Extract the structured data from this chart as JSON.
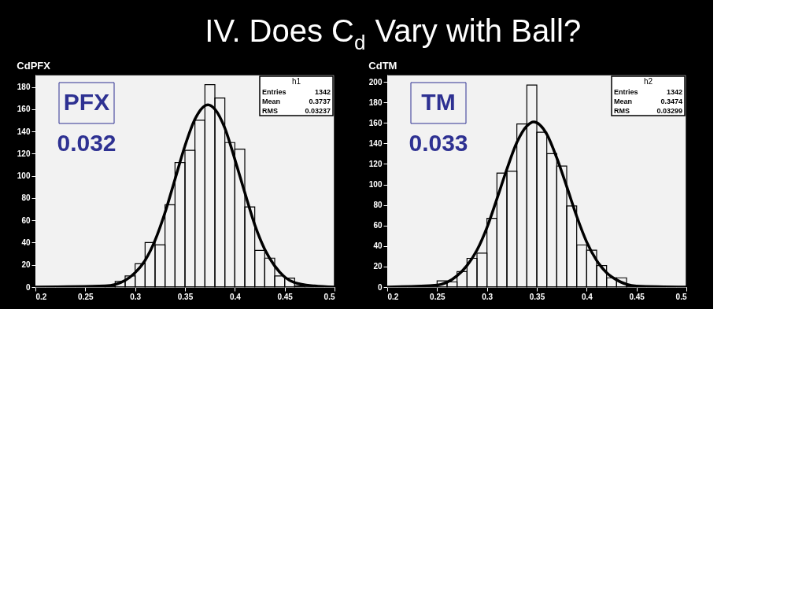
{
  "chart_data": [
    {
      "type": "histogram",
      "title": "CdPFX",
      "xlim": [
        0.2,
        0.5
      ],
      "xticks": [
        0.2,
        0.25,
        0.3,
        0.35,
        0.4,
        0.45,
        0.5
      ],
      "ylim": [
        0,
        191
      ],
      "yticks": [
        0,
        20,
        40,
        60,
        80,
        100,
        120,
        140,
        160,
        180
      ],
      "grid": false,
      "bins": [
        0.2,
        0.21,
        0.22,
        0.23,
        0.24,
        0.25,
        0.26,
        0.27,
        0.28,
        0.29,
        0.3,
        0.31,
        0.32,
        0.33,
        0.34,
        0.35,
        0.36,
        0.37,
        0.38,
        0.39,
        0.4,
        0.41,
        0.42,
        0.43,
        0.44,
        0.45,
        0.46,
        0.47,
        0.48,
        0.49,
        0.5
      ],
      "series": [
        {
          "color": "#000000",
          "values": [
            0,
            0,
            0,
            0,
            0,
            0,
            0,
            1,
            5,
            10,
            21,
            40,
            38,
            74,
            112,
            123,
            150,
            182,
            170,
            130,
            124,
            72,
            33,
            26,
            10,
            8,
            1,
            0,
            0,
            0
          ]
        },
        {
          "type": "line",
          "color": "#000000",
          "x": [
            0.2,
            0.27,
            0.29,
            0.3,
            0.31,
            0.32,
            0.33,
            0.34,
            0.35,
            0.36,
            0.373,
            0.38,
            0.39,
            0.4,
            0.41,
            0.42,
            0.43,
            0.44,
            0.45,
            0.46,
            0.48,
            0.5
          ],
          "values": [
            0,
            1,
            6,
            13,
            24,
            42,
            67,
            97,
            127,
            151,
            164,
            160,
            143,
            115,
            85,
            56,
            34,
            19,
            9,
            4,
            1,
            0
          ]
        }
      ],
      "annotations": [
        "IV.  Does C$_{d}$ Vary with Ball?",
        "h1",
        "Entries",
        "1342",
        "Mean",
        "0.3737",
        "RMS",
        "0.03237",
        "PFX",
        "0.032"
      ]
    },
    {
      "type": "histogram",
      "title": "CdTM",
      "xlim": [
        0.2,
        0.5
      ],
      "xticks": [
        0.2,
        0.25,
        0.3,
        0.35,
        0.4,
        0.45,
        0.5
      ],
      "ylim": [
        0,
        207
      ],
      "yticks": [
        0,
        20,
        40,
        60,
        80,
        100,
        120,
        140,
        160,
        180,
        200
      ],
      "grid": false,
      "bins": [
        0.2,
        0.21,
        0.22,
        0.23,
        0.24,
        0.25,
        0.26,
        0.27,
        0.28,
        0.29,
        0.3,
        0.31,
        0.32,
        0.33,
        0.34,
        0.35,
        0.36,
        0.37,
        0.38,
        0.39,
        0.4,
        0.41,
        0.42,
        0.43,
        0.44,
        0.45,
        0.46,
        0.47,
        0.48,
        0.49,
        0.5
      ],
      "series": [
        {
          "color": "#000000",
          "values": [
            0,
            0,
            0,
            0,
            0,
            6,
            5,
            15,
            28,
            33,
            67,
            111,
            113,
            159,
            197,
            151,
            130,
            118,
            79,
            41,
            36,
            21,
            9,
            9,
            1,
            0,
            0,
            0,
            0,
            0
          ]
        },
        {
          "type": "line",
          "color": "#000000",
          "x": [
            0.2,
            0.25,
            0.27,
            0.28,
            0.29,
            0.3,
            0.31,
            0.32,
            0.33,
            0.34,
            0.347,
            0.36,
            0.37,
            0.38,
            0.39,
            0.4,
            0.41,
            0.42,
            0.43,
            0.45,
            0.5
          ],
          "values": [
            0,
            2,
            11,
            21,
            36,
            58,
            86,
            115,
            141,
            157,
            161,
            149,
            126,
            98,
            69,
            44,
            26,
            14,
            7,
            1,
            0
          ]
        }
      ],
      "annotations": [
        "h2",
        "Entries",
        "1342",
        "Mean",
        "0.3474",
        "RMS",
        "0.03299",
        "TM",
        "0.033"
      ]
    }
  ]
}
